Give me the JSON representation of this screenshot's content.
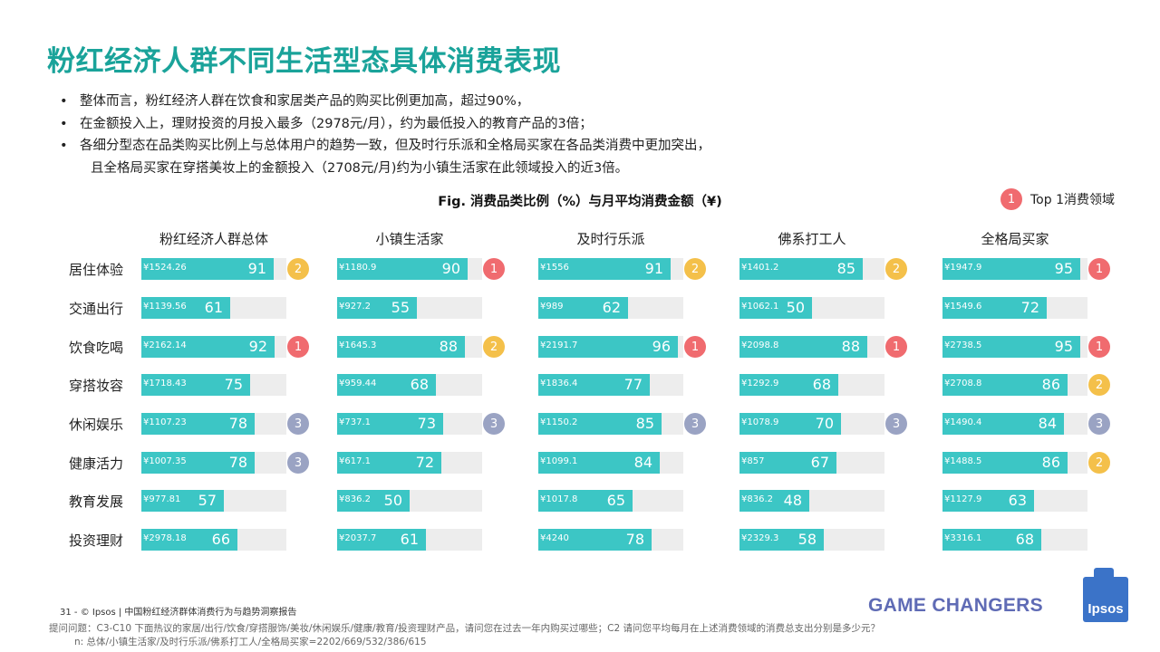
{
  "title": "粉红经济人群不同生活型态具体消费表现",
  "bullets": [
    {
      "text": "整体而言，粉红经济人群在饮食和家居类产品的购买比例更加高，超过90%，",
      "cont": ""
    },
    {
      "text": "在金额投入上，理财投资的月投入最多（2978元/月），约为最低投入的教育产品的3倍；",
      "cont": ""
    },
    {
      "text": "各细分型态在品类购买比例上与总体用户的趋势一致，但及时行乐派和全格局买家在各品类消费中更加突出，",
      "cont": "且全格局买家在穿搭美妆上的金额投入（2708元/月)约为小镇生活家在此领域投入的近3倍。"
    }
  ],
  "fig_title": "Fig. 消费品类比例（%）与月平均消费金额（¥)",
  "legend": {
    "badge": "1",
    "label": "Top 1消费领域"
  },
  "colors": {
    "bar": "#3cc6c5",
    "bar_bg": "#ededed",
    "rank1": "#f06b6f",
    "rank2": "#f4c04a",
    "rank3": "#9aa3c3",
    "title": "#1aa39a"
  },
  "chart_data": {
    "type": "bar",
    "orientation": "horizontal",
    "title": "Fig. 消费品类比例（%）与月平均消费金额（¥)",
    "categories": [
      "居住体验",
      "交通出行",
      "饮食吃喝",
      "穿搭妆容",
      "休闲娱乐",
      "健康活力",
      "教育发展",
      "投资理财"
    ],
    "xlim": [
      0,
      100
    ],
    "series": [
      {
        "name": "粉红经济人群总体",
        "values": [
          91,
          61,
          92,
          75,
          78,
          78,
          57,
          66
        ],
        "amounts": [
          "¥1524.26",
          "¥1139.56",
          "¥2162.14",
          "¥1718.43",
          "¥1107.23",
          "¥1007.35",
          "¥977.81",
          "¥2978.18"
        ],
        "ranks": [
          "2",
          "",
          "1",
          "",
          "3",
          "3",
          "",
          ""
        ]
      },
      {
        "name": "小镇生活家",
        "values": [
          90,
          55,
          88,
          68,
          73,
          72,
          50,
          61
        ],
        "amounts": [
          "¥1180.9",
          "¥927.2",
          "¥1645.3",
          "¥959.44",
          "¥737.1",
          "¥617.1",
          "¥836.2",
          "¥2037.7"
        ],
        "ranks": [
          "1",
          "",
          "2",
          "",
          "3",
          "",
          "",
          ""
        ]
      },
      {
        "name": "及时行乐派",
        "values": [
          91,
          62,
          96,
          77,
          85,
          84,
          65,
          78
        ],
        "amounts": [
          "¥1556",
          "¥989",
          "¥2191.7",
          "¥1836.4",
          "¥1150.2",
          "¥1099.1",
          "¥1017.8",
          "¥4240"
        ],
        "ranks": [
          "2",
          "",
          "1",
          "",
          "3",
          "",
          "",
          ""
        ]
      },
      {
        "name": "佛系打工人",
        "values": [
          85,
          50,
          88,
          68,
          70,
          67,
          48,
          58
        ],
        "amounts": [
          "¥1401.2",
          "¥1062.1",
          "¥2098.8",
          "¥1292.9",
          "¥1078.9",
          "¥857",
          "¥836.2",
          "¥2329.3"
        ],
        "ranks": [
          "2",
          "",
          "1",
          "",
          "3",
          "",
          "",
          ""
        ]
      },
      {
        "name": "全格局买家",
        "values": [
          95,
          72,
          95,
          86,
          84,
          86,
          63,
          68
        ],
        "amounts": [
          "¥1947.9",
          "¥1549.6",
          "¥2738.5",
          "¥2708.8",
          "¥1490.4",
          "¥1488.5",
          "¥1127.9",
          "¥3316.1"
        ],
        "ranks": [
          "1",
          "",
          "1",
          "2",
          "3",
          "2",
          "",
          ""
        ]
      }
    ]
  },
  "footer": {
    "source": "31 -  © Ipsos  |  中国粉红经济群体消费行为与趋势洞察报告",
    "note1": "提问问题：C3-C10 下面热议的家居/出行/饮食/穿搭服饰/美妆/休闲娱乐/健康/教育/投资理财产品，请问您在过去一年内购买过哪些；C2 请问您平均每月在上述消费领域的消费总支出分别是多少元？",
    "note2": "n: 总体/小镇生活家/及时行乐派/佛系打工人/全格局买家=2202/669/532/386/615",
    "brand": "GAME CHANGERS",
    "logo": "Ipsos"
  }
}
